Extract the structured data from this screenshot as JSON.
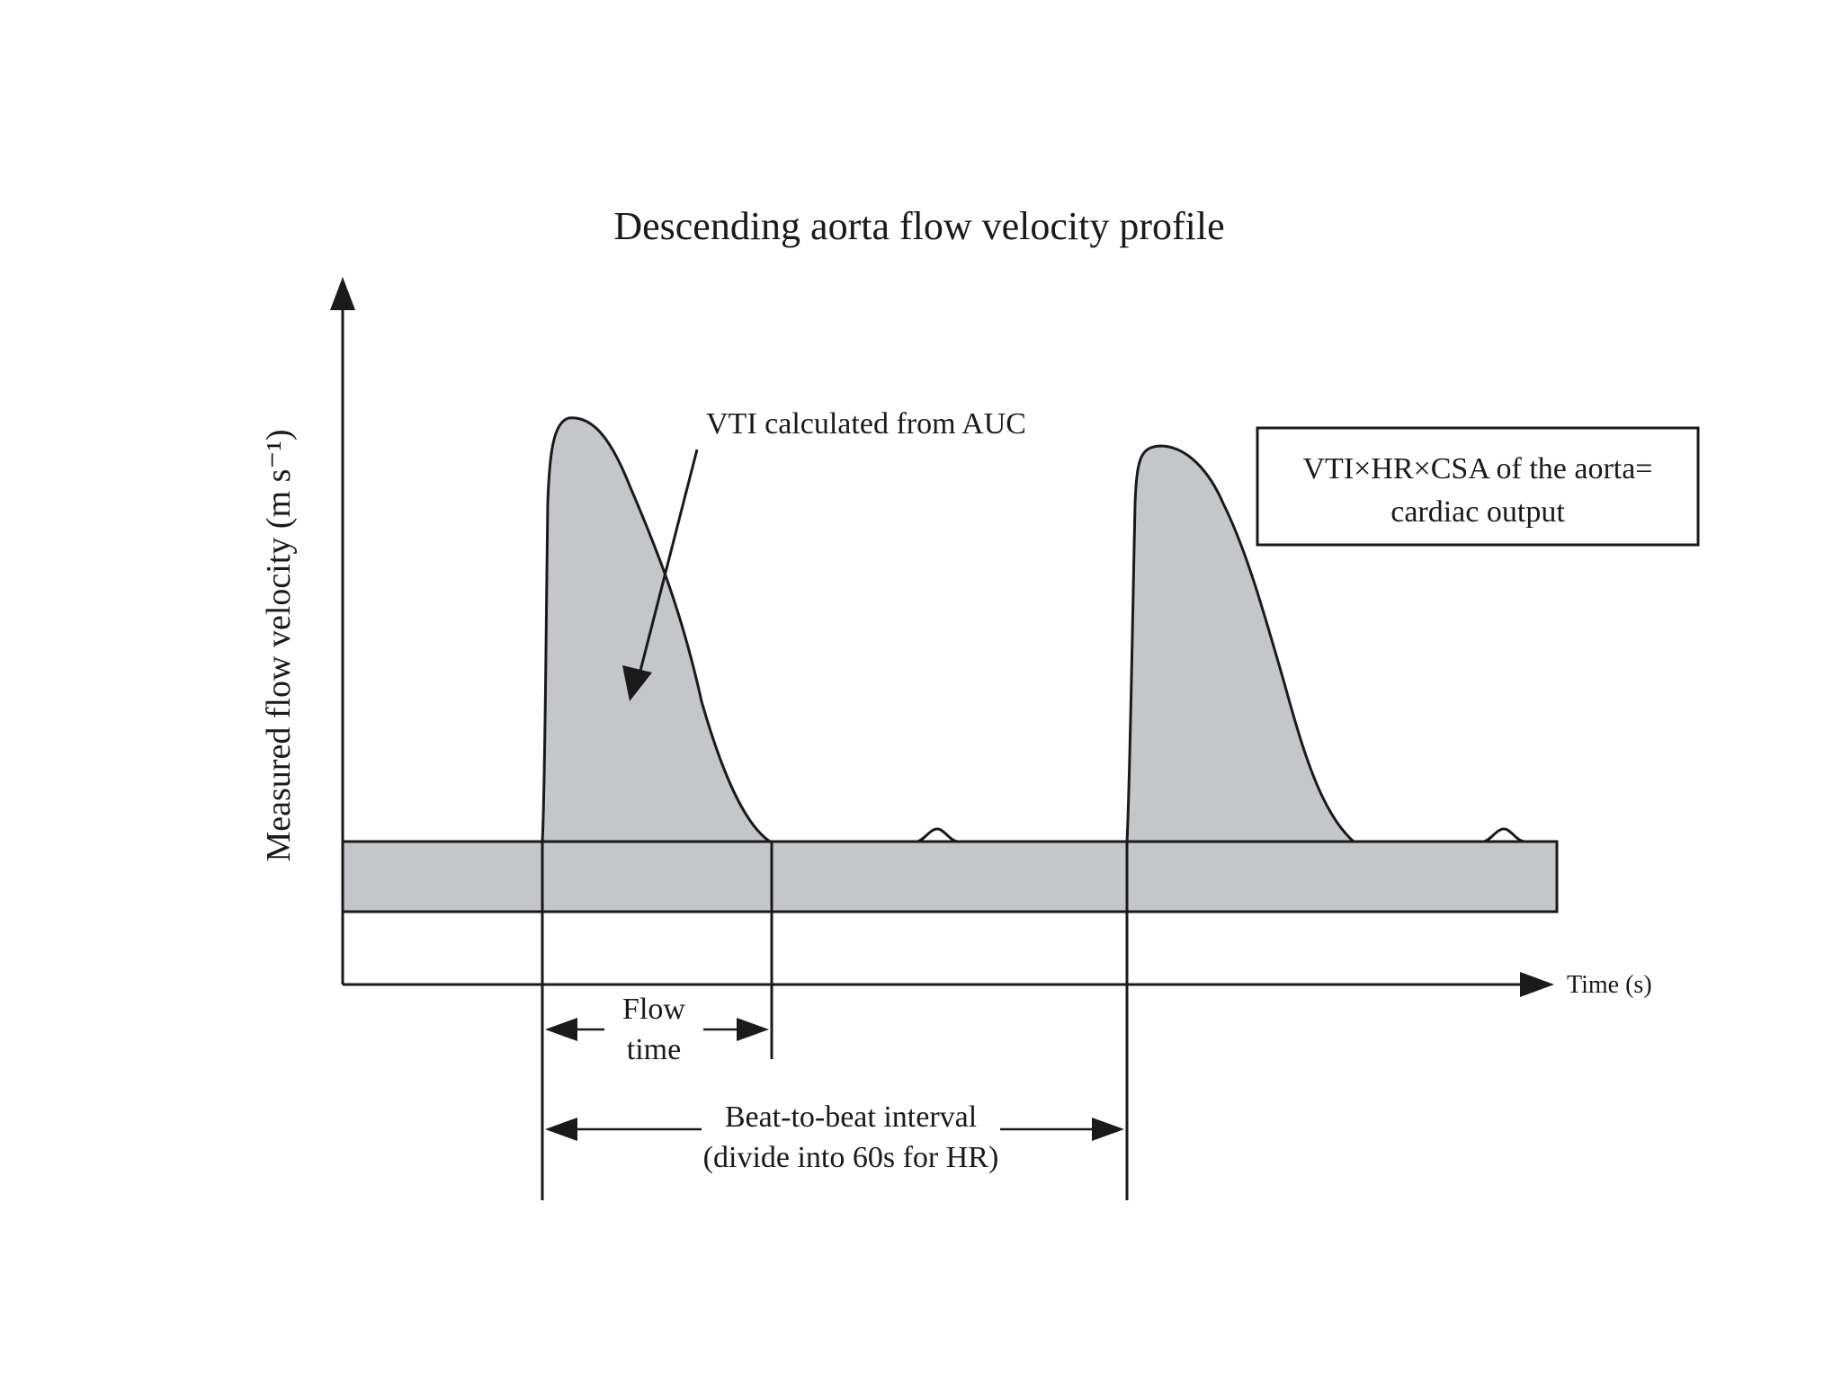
{
  "diagram": {
    "title": "Descending aorta flow velocity profile",
    "y_axis_label": "Measured flow velocity (m s⁻¹)",
    "x_axis_label": "Time (s)",
    "vti_annotation": "VTI calculated from AUC",
    "formula_box": {
      "line1": "VTI×HR×CSA of the aorta=",
      "line2": "cardiac output"
    },
    "flow_time": {
      "line1": "Flow",
      "line2": "time"
    },
    "beat_interval": {
      "line1": "Beat-to-beat interval",
      "line2": "(divide into 60s for HR)"
    },
    "colors": {
      "shade": "#c4c6c9",
      "ink": "#1a1a1a"
    }
  }
}
